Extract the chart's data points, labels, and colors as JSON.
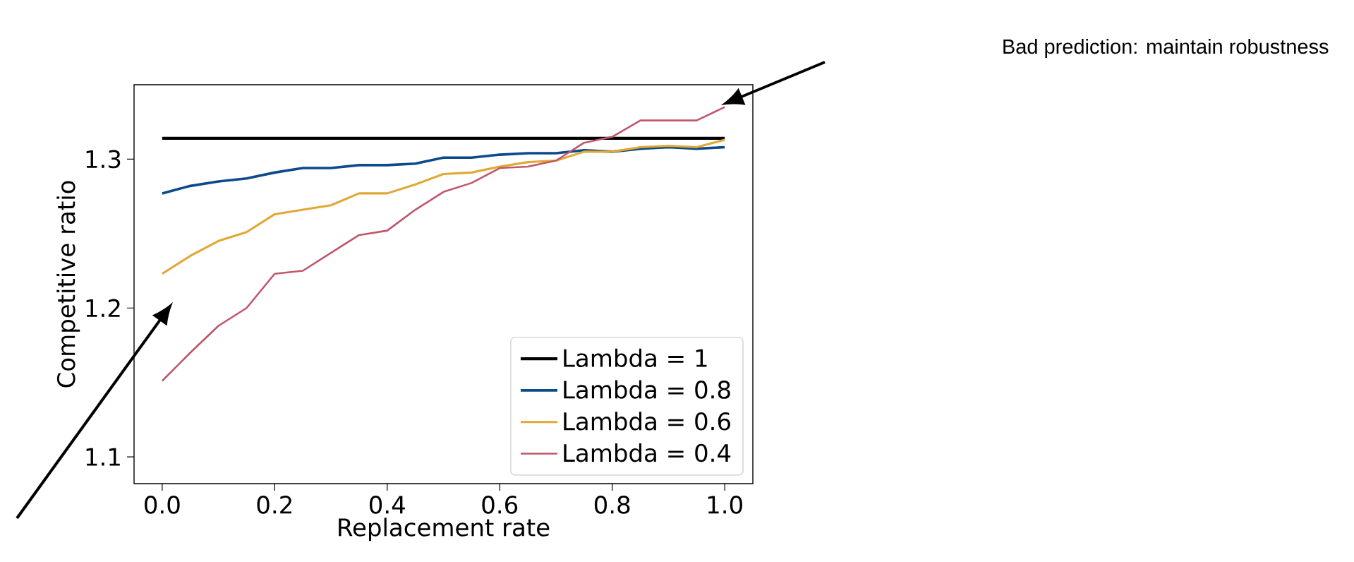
{
  "chart_data": {
    "type": "line",
    "xlabel": "Replacement rate",
    "ylabel": "Competitive ratio",
    "x": [
      0,
      0.05,
      0.1,
      0.15,
      0.2,
      0.25,
      0.3,
      0.35,
      0.4,
      0.45,
      0.5,
      0.55,
      0.6,
      0.65,
      0.7,
      0.75,
      0.8,
      0.85,
      0.9,
      0.95,
      1.0
    ],
    "series": [
      {
        "name": "Lambda = 1",
        "color": "#000000",
        "x": [
          0,
          1.0
        ],
        "values": [
          1.314,
          1.314
        ]
      },
      {
        "name": "Lambda = 0.8",
        "color": "#0b4a8b",
        "values": [
          1.277,
          1.282,
          1.285,
          1.287,
          1.291,
          1.294,
          1.294,
          1.296,
          1.296,
          1.297,
          1.301,
          1.301,
          1.303,
          1.304,
          1.304,
          1.306,
          1.305,
          1.307,
          1.308,
          1.307,
          1.308
        ]
      },
      {
        "name": "Lambda = 0.6",
        "color": "#e0a834",
        "values": [
          1.223,
          1.235,
          1.245,
          1.251,
          1.263,
          1.266,
          1.269,
          1.277,
          1.277,
          1.283,
          1.29,
          1.291,
          1.295,
          1.298,
          1.299,
          1.305,
          1.305,
          1.308,
          1.309,
          1.308,
          1.313
        ]
      },
      {
        "name": "Lambda = 0.4",
        "color": "#c0566a",
        "values": [
          1.151,
          1.17,
          1.188,
          1.2,
          1.223,
          1.225,
          1.237,
          1.249,
          1.252,
          1.266,
          1.278,
          1.284,
          1.294,
          1.295,
          1.299,
          1.311,
          1.315,
          1.326,
          1.326,
          1.326,
          1.335
        ]
      }
    ],
    "xlim": [
      -0.05,
      1.05
    ],
    "ylim": [
      1.082,
      1.35
    ],
    "xticks": [
      {
        "value": 0,
        "label": "0.0"
      },
      0.2,
      0.4,
      0.6,
      0.8,
      {
        "value": 1,
        "label": "1.0"
      }
    ],
    "yticks": [
      1.1,
      1.2,
      1.3
    ],
    "legend": "bottom right",
    "marker": "none",
    "line_style": "solid",
    "annotations": [
      "Bad prediction: maintain robustness"
    ]
  }
}
